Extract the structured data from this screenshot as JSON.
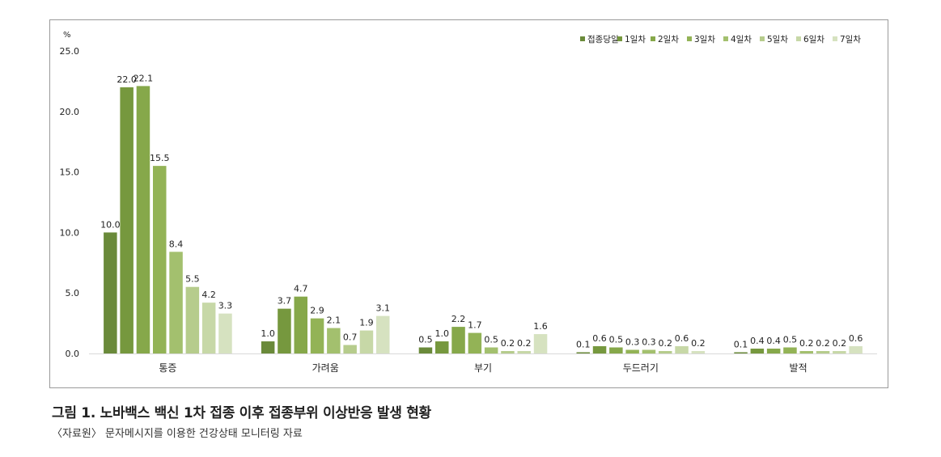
{
  "caption": {
    "title": "그림 1. 노바백스 백신 1차 접종 이후 접종부위 이상반응 발생 현황",
    "source": "〈자료원〉 문자메시지를 이용한 건강상태 모니터링 자료"
  },
  "chart_data": {
    "type": "bar",
    "title": "",
    "ylabel": "%",
    "xlabel": "",
    "ylim": [
      0,
      25
    ],
    "yticks": [
      "0.0",
      "5.0",
      "10.0",
      "15.0",
      "20.0",
      "25.0"
    ],
    "ytick_values": [
      0,
      5,
      10,
      15,
      20,
      25
    ],
    "grid": false,
    "legend_position": "top-right",
    "categories": [
      "통증",
      "가려움",
      "부기",
      "두드러기",
      "발적"
    ],
    "series": [
      {
        "name": "접종당일",
        "color": "#6a8a3a",
        "values": [
          10.0,
          1.0,
          0.5,
          0.1,
          0.1
        ],
        "labels": [
          "10.0",
          "1.0",
          "0.5",
          "0.1",
          "0.1"
        ]
      },
      {
        "name": "1일차",
        "color": "#76983e",
        "values": [
          22.0,
          3.7,
          1.0,
          0.6,
          0.4
        ],
        "labels": [
          "22.0",
          "3.7",
          "1.0",
          "0.6",
          "0.4"
        ]
      },
      {
        "name": "2일차",
        "color": "#86a84a",
        "values": [
          22.1,
          4.7,
          2.2,
          0.5,
          0.4
        ],
        "labels": [
          "22.1",
          "4.7",
          "2.2",
          "0.5",
          "0.4"
        ]
      },
      {
        "name": "3일차",
        "color": "#93b356",
        "values": [
          15.5,
          2.9,
          1.7,
          0.3,
          0.5
        ],
        "labels": [
          "15.5",
          "2.9",
          "1.7",
          "0.3",
          "0.5"
        ]
      },
      {
        "name": "4일차",
        "color": "#a3c06e",
        "values": [
          8.4,
          2.1,
          0.5,
          0.3,
          0.2
        ],
        "labels": [
          "8.4",
          "2.1",
          "0.5",
          "0.3",
          "0.2"
        ]
      },
      {
        "name": "5일차",
        "color": "#b6cc8c",
        "values": [
          5.5,
          0.7,
          0.2,
          0.2,
          0.2
        ],
        "labels": [
          "5.5",
          "0.7",
          "0.2",
          "0.2",
          "0.2"
        ]
      },
      {
        "name": "6일차",
        "color": "#c7d8a7",
        "values": [
          4.2,
          1.9,
          0.2,
          0.6,
          0.2
        ],
        "labels": [
          "4.2",
          "1.9",
          "0.2",
          "0.6",
          "0.2"
        ]
      },
      {
        "name": "7일차",
        "color": "#d6e2c0",
        "values": [
          3.3,
          3.1,
          1.6,
          0.2,
          0.6
        ],
        "labels": [
          "3.3",
          "3.1",
          "1.6",
          "0.2",
          "0.6"
        ]
      }
    ]
  }
}
